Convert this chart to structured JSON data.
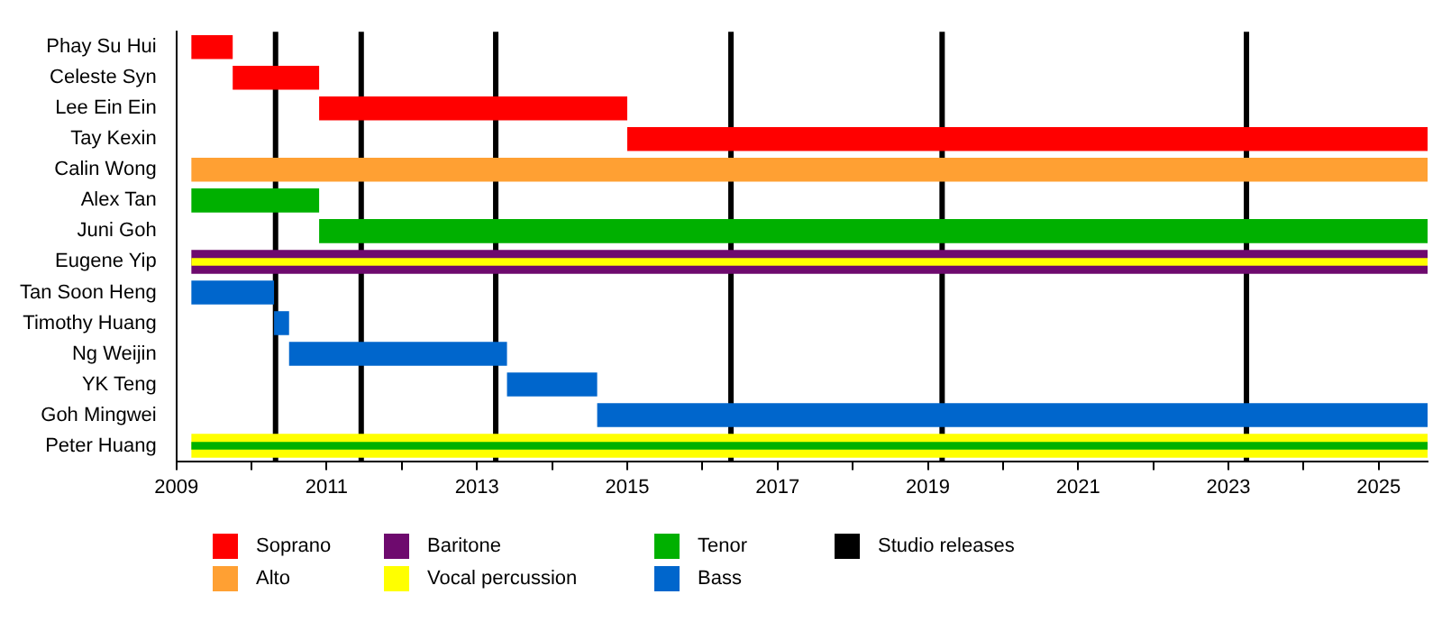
{
  "chart_data": {
    "type": "bar",
    "orientation": "horizontal",
    "legend": "bottom",
    "grid": false,
    "categories": [
      "Phay Su Hui",
      "Celeste Syn",
      "Lee Ein Ein",
      "Tay Kexin",
      "Calin Wong",
      "Alex Tan",
      "Juni Goh",
      "Eugene Yip",
      "Tan Soon Heng",
      "Timothy Huang",
      "Ng Weijin",
      "YK Teng",
      "Goh Mingwei",
      "Peter Huang"
    ],
    "series": [
      {
        "name": "Soprano",
        "color": "#ff0000",
        "base": [
          2009.2,
          2009.75,
          2010.9,
          2015.0,
          null,
          null,
          null,
          null,
          null,
          null,
          null,
          null,
          null,
          null
        ],
        "values": [
          0.55,
          1.15,
          4.1,
          10.65,
          null,
          null,
          null,
          null,
          null,
          null,
          null,
          null,
          null,
          null
        ]
      },
      {
        "name": "Alto",
        "color": "#ffa033",
        "base": [
          null,
          null,
          null,
          null,
          2009.2,
          null,
          null,
          null,
          null,
          null,
          null,
          null,
          null,
          null
        ],
        "values": [
          null,
          null,
          null,
          null,
          16.45,
          null,
          null,
          null,
          null,
          null,
          null,
          null,
          null,
          null
        ]
      },
      {
        "name": "Baritone",
        "color": "#6e0a6e",
        "base": [
          null,
          null,
          null,
          null,
          null,
          null,
          null,
          2009.2,
          null,
          null,
          null,
          null,
          null,
          null
        ],
        "values": [
          null,
          null,
          null,
          null,
          null,
          null,
          null,
          16.45,
          null,
          null,
          null,
          null,
          null,
          null
        ]
      },
      {
        "name": "Vocal percussion",
        "color": "#ffff00",
        "base": [
          null,
          null,
          null,
          null,
          null,
          null,
          null,
          2009.2,
          null,
          null,
          null,
          null,
          null,
          2009.2
        ],
        "values": [
          null,
          null,
          null,
          null,
          null,
          null,
          null,
          16.45,
          null,
          null,
          null,
          null,
          null,
          16.45
        ]
      },
      {
        "name": "Tenor",
        "color": "#00b000",
        "base": [
          null,
          null,
          null,
          null,
          null,
          2009.2,
          2010.9,
          null,
          null,
          null,
          null,
          null,
          null,
          2009.2
        ],
        "values": [
          null,
          null,
          null,
          null,
          null,
          1.7,
          14.75,
          null,
          null,
          null,
          null,
          null,
          null,
          16.45
        ]
      },
      {
        "name": "Bass",
        "color": "#0066cc",
        "base": [
          null,
          null,
          null,
          null,
          null,
          null,
          null,
          null,
          2009.2,
          2010.3,
          2010.5,
          2013.4,
          2014.6,
          null
        ],
        "values": [
          null,
          null,
          null,
          null,
          null,
          null,
          null,
          null,
          1.1,
          0.2,
          2.9,
          1.2,
          11.05,
          null
        ]
      }
    ],
    "ref_lines": [
      {
        "axis": "x",
        "value": 2010.32,
        "label": "Studio releases",
        "color": "#000000"
      },
      {
        "axis": "x",
        "value": 2011.46,
        "color": "#000000"
      },
      {
        "axis": "x",
        "value": 2013.25,
        "color": "#000000"
      },
      {
        "axis": "x",
        "value": 2016.38,
        "color": "#000000"
      },
      {
        "axis": "x",
        "value": 2019.19,
        "color": "#000000"
      },
      {
        "axis": "x",
        "value": 2023.24,
        "color": "#000000"
      }
    ],
    "xlim": [
      2009,
      2025.65
    ],
    "xticks": [
      2009,
      {
        "value": 2010,
        "label": null
      },
      2011,
      {
        "value": 2012,
        "label": null
      },
      2013,
      {
        "value": 2014,
        "label": null
      },
      2015,
      {
        "value": 2016,
        "label": null
      },
      2017,
      {
        "value": 2018,
        "label": null
      },
      2019,
      {
        "value": 2020,
        "label": null
      },
      2021,
      {
        "value": 2022,
        "label": null
      },
      2023,
      {
        "value": 2024,
        "label": null
      },
      2025
    ]
  }
}
